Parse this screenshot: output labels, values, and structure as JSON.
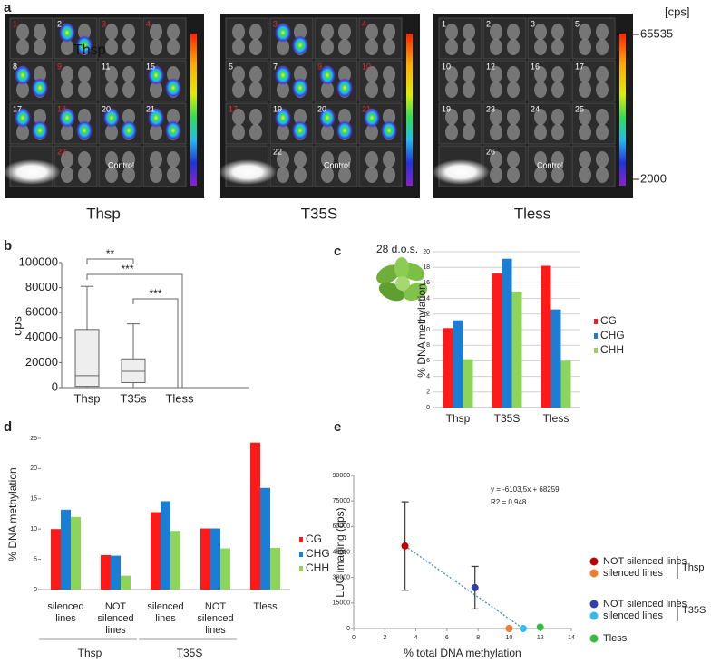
{
  "panel_labels": [
    "a",
    "b",
    "c",
    "d",
    "e"
  ],
  "panel_a": {
    "plates": [
      {
        "name": "Thsp",
        "overlay": "Thsp",
        "cells": [
          "1",
          "2",
          "3",
          "4",
          "8",
          "9",
          "11",
          "15",
          "17",
          "18",
          "20",
          "21",
          null,
          "23",
          "Control",
          null
        ],
        "cell_colors": [
          "#e03030",
          "#ffffff",
          "#e03030",
          "#e03030",
          "#ffffff",
          "#e03030",
          "#ffffff",
          "#ffffff",
          "#ffffff",
          "#e03030",
          "#ffffff",
          "#ffffff",
          null,
          "#e03030",
          "#ffffff",
          null
        ]
      },
      {
        "name": "T35S",
        "cells": [
          null,
          "3",
          null,
          "4",
          "5",
          "7",
          "9",
          "10",
          "17",
          "19",
          "20",
          "21",
          null,
          "22",
          "Control",
          null
        ],
        "cell_colors": [
          null,
          "#e03030",
          null,
          "#e03030",
          "#ffffff",
          "#ffffff",
          "#e03030",
          "#e03030",
          "#e03030",
          "#ffffff",
          "#ffffff",
          "#e03030",
          null,
          "#ffffff",
          "#ffffff",
          null
        ]
      },
      {
        "name": "Tless",
        "cells": [
          "1",
          "2",
          "3",
          "5",
          "10",
          "12",
          "16",
          "17",
          "19",
          "23",
          "24",
          "25",
          null,
          "26",
          "Control",
          null
        ],
        "cell_colors": [
          "#ffffff",
          "#ffffff",
          "#ffffff",
          "#ffffff",
          "#ffffff",
          "#ffffff",
          "#ffffff",
          "#ffffff",
          "#ffffff",
          "#ffffff",
          "#ffffff",
          "#ffffff",
          null,
          "#ffffff",
          "#ffffff",
          null
        ]
      }
    ],
    "scale": {
      "unit": "[cps]",
      "max": 65535,
      "min": 2000
    }
  },
  "chart_data": [
    {
      "type": "box",
      "y_label": "cps",
      "categories": [
        "Thsp",
        "T35s",
        "Tless"
      ],
      "boxes": [
        {
          "min": 0,
          "q1": 1000,
          "median": 9500,
          "q3": 46500,
          "max": 81000
        },
        {
          "min": 0,
          "q1": 4000,
          "median": 13000,
          "q3": 23000,
          "max": 51000
        },
        null
      ],
      "ylim": [
        0,
        100000
      ],
      "yticks": [
        0,
        20000,
        40000,
        60000,
        80000,
        100000
      ],
      "significance": [
        "**",
        "***",
        "***"
      ],
      "color": "#eeeeee"
    },
    {
      "type": "bar",
      "title": "28 d.o.s.",
      "y_label": "% DNA methylation",
      "categories": [
        "Thsp",
        "T35S",
        "Tless"
      ],
      "series": [
        {
          "name": "CG",
          "color": "#ff1a1a",
          "values": [
            10.2,
            17.2,
            18.2
          ]
        },
        {
          "name": "CHG",
          "color": "#1a7fd4",
          "values": [
            11.2,
            19.1,
            12.6
          ]
        },
        {
          "name": "CHH",
          "color": "#8fd45a",
          "values": [
            6.2,
            14.9,
            6.0
          ]
        }
      ],
      "ylim": [
        0,
        20
      ],
      "yticks": [
        0,
        2,
        4,
        6,
        8,
        10,
        12,
        14,
        16,
        18,
        20
      ],
      "grid": true
    },
    {
      "type": "bar",
      "y_label": "% DNA methylation",
      "categories": [
        "silenced lines",
        "NOT silenced lines",
        "silenced lines",
        "NOT silenced lines",
        "Tless"
      ],
      "groups": [
        "Thsp",
        "T35S"
      ],
      "series": [
        {
          "name": "CG",
          "color": "#ff1a1a",
          "values": [
            10,
            5.7,
            12.8,
            10.1,
            24.3
          ]
        },
        {
          "name": "CHG",
          "color": "#1a7fd4",
          "values": [
            13.2,
            5.6,
            14.6,
            10.1,
            16.8
          ]
        },
        {
          "name": "CHH",
          "color": "#8fd45a",
          "values": [
            12,
            2.3,
            9.7,
            6.8,
            6.9
          ]
        }
      ],
      "ylim": [
        0,
        25
      ],
      "yticks": [
        0,
        5,
        10,
        15,
        20,
        25
      ],
      "grid": false
    },
    {
      "type": "scatter",
      "x_label": "% total DNA methylation",
      "y_label": "LUC imaging (cps)",
      "equation": "y = -6103,5x + 68259",
      "r2": "R2 = 0,948",
      "series": [
        {
          "name": "NOT silenced lines",
          "color": "#c00000",
          "x": [
            3.3
          ],
          "values": [
            48500
          ],
          "errors": [
            26000
          ]
        },
        {
          "name": "silenced lines",
          "color": "#ed7d31",
          "x": [
            10
          ],
          "values": [
            0
          ]
        },
        {
          "name": "NOT silenced lines",
          "color": "#2f3fae",
          "x": [
            7.8
          ],
          "values": [
            24000
          ],
          "errors": [
            12500
          ]
        },
        {
          "name": "silenced lines",
          "color": "#33bbee",
          "x": [
            10.9
          ],
          "values": [
            0
          ]
        },
        {
          "name": "Tless",
          "color": "#33bb44",
          "x": [
            12
          ],
          "values": [
            800
          ]
        }
      ],
      "legend_groups": [
        "Thsp",
        "T35S"
      ],
      "xlim": [
        0,
        14
      ],
      "xticks": [
        0,
        2,
        4,
        6,
        8,
        10,
        12,
        14
      ],
      "ylim": [
        0,
        90000
      ],
      "yticks": [
        0,
        15000,
        30000,
        45000,
        60000,
        75000,
        90000
      ]
    }
  ]
}
